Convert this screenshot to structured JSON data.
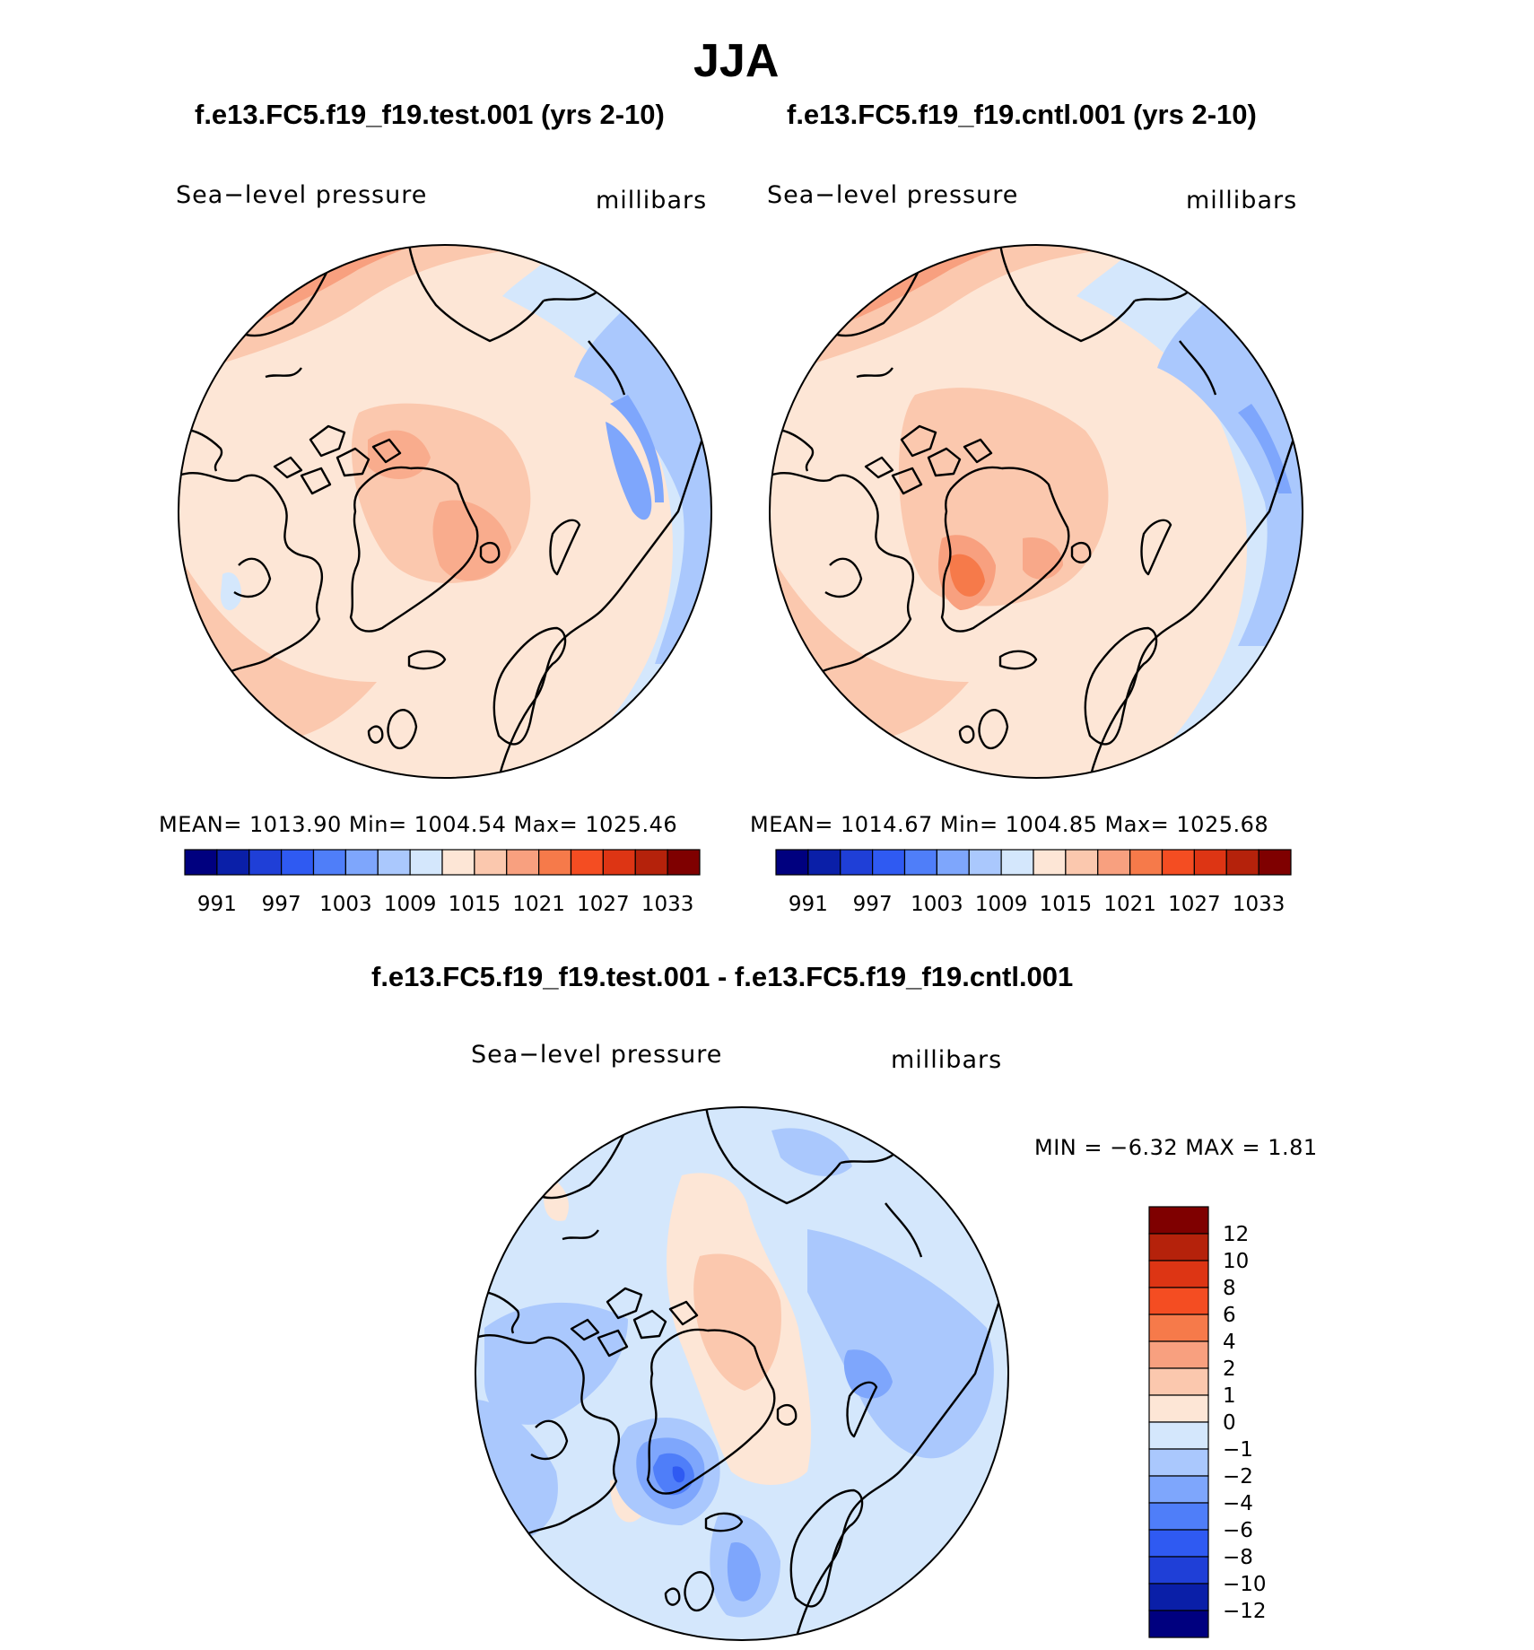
{
  "title": "JJA",
  "panels": [
    {
      "case": "f.e13.FC5.f19_f19.test.001 (yrs 2-10)",
      "variable": "Sea−level pressure",
      "units": "millibars",
      "stats": "MEAN=  1013.90   Min=  1004.54   Max=  1025.46"
    },
    {
      "case": "f.e13.FC5.f19_f19.cntl.001 (yrs 2-10)",
      "variable": "Sea−level pressure",
      "units": "millibars",
      "stats": "MEAN=  1014.67   Min=  1004.85   Max=  1025.68"
    },
    {
      "case": "f.e13.FC5.f19_f19.test.001 - f.e13.FC5.f19_f19.cntl.001",
      "variable": "Sea−level pressure",
      "units": "millibars",
      "stats": "MIN =    −6.32  MAX =     1.81"
    }
  ],
  "chart_data": [
    {
      "type": "heatmap",
      "title": "f.e13.FC5.f19_f19.test.001 (yrs 2-10)",
      "projection": "north-polar stereographic",
      "variable": "Sea-level pressure",
      "units": "millibars",
      "mean": 1013.9,
      "min": 1004.54,
      "max": 1025.46,
      "levels": [
        "991",
        "997",
        "1003",
        "1009",
        "1015",
        "1021",
        "1027",
        "1033"
      ]
    },
    {
      "type": "heatmap",
      "title": "f.e13.FC5.f19_f19.cntl.001 (yrs 2-10)",
      "projection": "north-polar stereographic",
      "variable": "Sea-level pressure",
      "units": "millibars",
      "mean": 1014.67,
      "min": 1004.85,
      "max": 1025.68,
      "levels": [
        "991",
        "997",
        "1003",
        "1009",
        "1015",
        "1021",
        "1027",
        "1033"
      ]
    },
    {
      "type": "heatmap",
      "title": "f.e13.FC5.f19_f19.test.001 - f.e13.FC5.f19_f19.cntl.001",
      "projection": "north-polar stereographic",
      "variable": "Sea-level pressure",
      "units": "millibars",
      "min": -6.32,
      "max": 1.81,
      "levels": [
        "12",
        "10",
        "8",
        "6",
        "4",
        "2",
        "1",
        "0",
        "−1",
        "−2",
        "−4",
        "−6",
        "−8",
        "−10",
        "−12"
      ]
    }
  ],
  "colors": {
    "abs_scale": [
      "#00007f",
      "#0a1fa8",
      "#1f3fd7",
      "#2f5af2",
      "#4f7ef9",
      "#7ea6fc",
      "#aac8fd",
      "#d4e7fc",
      "#fde6d6",
      "#fbc8ae",
      "#f8a07f",
      "#f67a4a",
      "#f44d22",
      "#dd3514",
      "#b5220b",
      "#7f0000"
    ],
    "diff_scale": [
      "#7f0000",
      "#b5220b",
      "#dd3514",
      "#f44d22",
      "#f67a4a",
      "#f8a07f",
      "#fbc8ae",
      "#fde6d6",
      "#d4e7fc",
      "#aac8fd",
      "#7ea6fc",
      "#4f7ef9",
      "#2f5af2",
      "#1f3fd7",
      "#0a1fa8",
      "#00007f"
    ]
  }
}
